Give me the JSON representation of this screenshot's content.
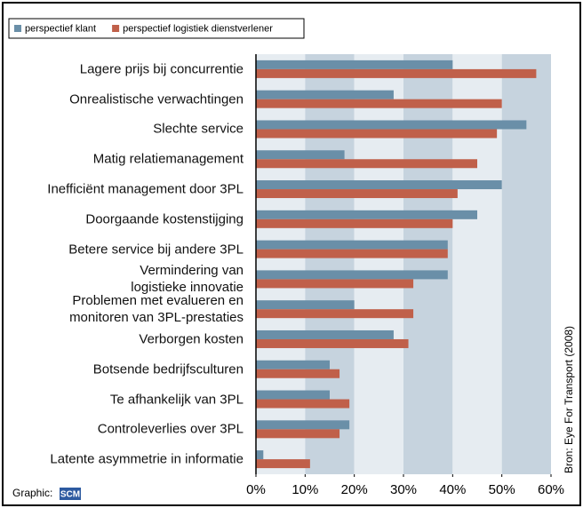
{
  "chart_data": {
    "type": "hbar",
    "categories": [
      "Lagere prijs bij concurrentie",
      "Onrealistische verwachtingen",
      "Slechte service",
      "Matig relatiemanagement",
      "Inefficiënt management door 3PL",
      "Doorgaande kostenstijging",
      "Betere service bij andere 3PL",
      "Vermindering van\nlogistieke innovatie",
      "Problemen met evalueren en\nmonitoren van 3PL-prestaties",
      "Verborgen kosten",
      "Botsende bedrijfsculturen",
      "Te afhankelijk van 3PL",
      "Controleverlies over 3PL",
      "Latente asymmetrie in informatie"
    ],
    "series": [
      {
        "name": "perspectief klant",
        "color": "#6a8fa8",
        "values": [
          40,
          28,
          55,
          18,
          50,
          45,
          39,
          39,
          20,
          28,
          15,
          15,
          19,
          1.5
        ]
      },
      {
        "name": "perspectief logistiek dienstverlener",
        "color": "#c0604a",
        "values": [
          57,
          50,
          49,
          45,
          41,
          40,
          39,
          32,
          32,
          31,
          17,
          19,
          17,
          11
        ]
      }
    ],
    "xlim": [
      0,
      60
    ],
    "xticks": [
      {
        "value": 0,
        "label": "0%"
      },
      {
        "value": 10,
        "label": "10%"
      },
      {
        "value": 20,
        "label": "20%"
      },
      {
        "value": 30,
        "label": "30%"
      },
      {
        "value": 40,
        "label": "40%"
      },
      {
        "value": 50,
        "label": "50%"
      },
      {
        "value": 60,
        "label": "60%"
      }
    ],
    "legend": "top-left",
    "source": "Bron: Eye For Transport (2008)",
    "credit": "Graphic:",
    "logo": "SCM"
  }
}
